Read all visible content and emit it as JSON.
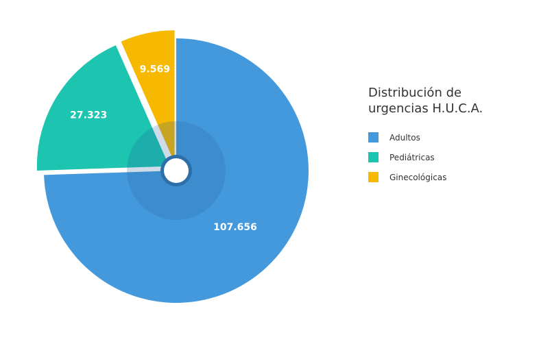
{
  "chart_data": {
    "type": "pie",
    "title": "Distribución de urgencias H.U.C.A.",
    "labels": [
      "Adultos",
      "Pediátricas",
      "Ginecológicas"
    ],
    "values": [
      107656,
      27323,
      9569
    ],
    "value_labels": [
      "107.656",
      "27.323",
      "9.569"
    ],
    "colors": [
      "#4499dd",
      "#1dc4b0",
      "#f7b800"
    ],
    "legend_position": "right"
  },
  "legend": {
    "title": "Distribución de urgencias H.U.C.A.",
    "items": [
      {
        "label": "Adultos",
        "color": "#4499dd"
      },
      {
        "label": "Pediátricas",
        "color": "#1dc4b0"
      },
      {
        "label": "Ginecológicas",
        "color": "#f7b800"
      }
    ]
  }
}
